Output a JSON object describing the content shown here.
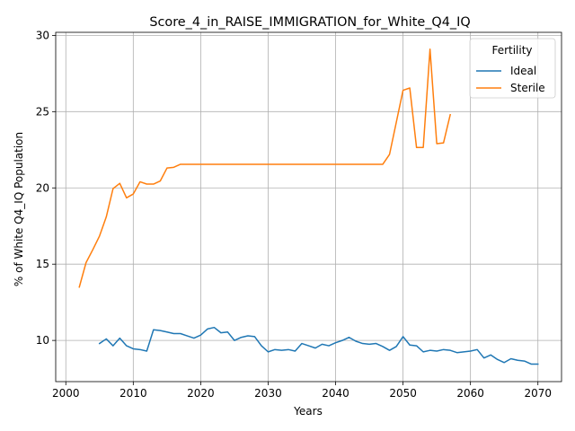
{
  "chart_data": {
    "type": "line",
    "title": "Score_4_in_RAISE_IMMIGRATION_for_White_Q4_IQ",
    "xlabel": "Years",
    "ylabel": "% of White Q4_IQ Population",
    "xlim": [
      1998.5,
      2073.5
    ],
    "ylim": [
      7.3,
      30.2
    ],
    "xticks": [
      2000,
      2010,
      2020,
      2030,
      2040,
      2050,
      2060,
      2070
    ],
    "yticks": [
      10,
      15,
      20,
      25,
      30
    ],
    "grid": true,
    "legend": {
      "title": "Fertility",
      "placement": "top-right"
    },
    "series": [
      {
        "name": "Ideal",
        "color": "#1f77b4",
        "x": [
          2005,
          2006,
          2007,
          2008,
          2009,
          2010,
          2011,
          2012,
          2013,
          2014,
          2015,
          2016,
          2017,
          2018,
          2019,
          2020,
          2021,
          2022,
          2023,
          2024,
          2025,
          2026,
          2027,
          2028,
          2029,
          2030,
          2031,
          2032,
          2033,
          2034,
          2035,
          2036,
          2037,
          2038,
          2039,
          2040,
          2041,
          2042,
          2043,
          2044,
          2045,
          2046,
          2047,
          2048,
          2049,
          2050,
          2051,
          2052,
          2053,
          2054,
          2055,
          2056,
          2057,
          2058,
          2059,
          2060,
          2061,
          2062,
          2063,
          2064,
          2065,
          2066,
          2067,
          2068,
          2069,
          2070
        ],
        "y": [
          9.8,
          10.1,
          9.65,
          10.15,
          9.65,
          9.45,
          9.4,
          9.3,
          10.7,
          10.65,
          10.55,
          10.45,
          10.45,
          10.3,
          10.15,
          10.35,
          10.75,
          10.85,
          10.5,
          10.55,
          10.0,
          10.2,
          10.3,
          10.25,
          9.65,
          9.25,
          9.4,
          9.35,
          9.4,
          9.3,
          9.8,
          9.65,
          9.5,
          9.75,
          9.65,
          9.85,
          10.0,
          10.2,
          9.95,
          9.8,
          9.75,
          9.8,
          9.6,
          9.35,
          9.6,
          10.25,
          9.7,
          9.65,
          9.25,
          9.35,
          9.3,
          9.4,
          9.35,
          9.2,
          9.25,
          9.3,
          9.4,
          8.85,
          9.05,
          8.75,
          8.55,
          8.8,
          8.7,
          8.65,
          8.45,
          8.45
        ]
      },
      {
        "name": "Sterile",
        "color": "#ff7f0e",
        "x": [
          2002,
          2003,
          2004,
          2005,
          2006,
          2007,
          2008,
          2009,
          2010,
          2011,
          2012,
          2013,
          2014,
          2015,
          2016,
          2017,
          2018,
          2019,
          2020,
          2021,
          2022,
          2023,
          2024,
          2025,
          2026,
          2027,
          2028,
          2029,
          2030,
          2031,
          2032,
          2033,
          2034,
          2035,
          2036,
          2037,
          2038,
          2039,
          2040,
          2041,
          2042,
          2043,
          2044,
          2045,
          2046,
          2047,
          2048,
          2049,
          2050,
          2051,
          2052,
          2053,
          2054,
          2055,
          2056,
          2057
        ],
        "y": [
          13.5,
          15.1,
          15.95,
          16.85,
          18.1,
          19.95,
          20.3,
          19.35,
          19.6,
          20.4,
          20.25,
          20.25,
          20.45,
          21.3,
          21.35,
          21.55,
          21.55,
          21.55,
          21.55,
          21.55,
          21.55,
          21.55,
          21.55,
          21.55,
          21.55,
          21.55,
          21.55,
          21.55,
          21.55,
          21.55,
          21.55,
          21.55,
          21.55,
          21.55,
          21.55,
          21.55,
          21.55,
          21.55,
          21.55,
          21.55,
          21.55,
          21.55,
          21.55,
          21.55,
          21.55,
          21.55,
          22.2,
          24.3,
          26.4,
          26.55,
          22.65,
          22.65,
          29.1,
          22.9,
          22.95,
          24.8
        ]
      }
    ]
  }
}
